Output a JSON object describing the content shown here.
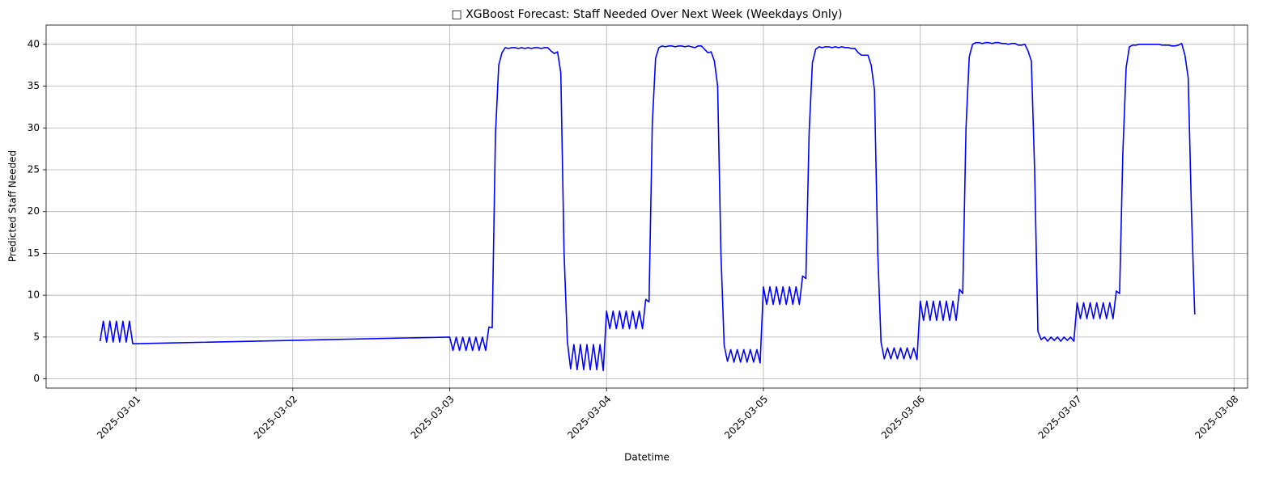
{
  "chart_data": {
    "type": "line",
    "title": "□ XGBoost Forecast: Staff Needed Over Next Week (Weekdays Only)",
    "x_label": "Datetime",
    "y_label": "Predicted Staff Needed",
    "color": "#0000ff",
    "grid": true,
    "xlim": [
      "2025-02-28 10:15",
      "2025-03-08 02:05"
    ],
    "xticks": [
      "2025-03-01",
      "2025-03-02",
      "2025-03-03",
      "2025-03-04",
      "2025-03-05",
      "2025-03-06",
      "2025-03-07",
      "2025-03-08"
    ],
    "ylim": [
      -1.1,
      42.3
    ],
    "yticks": [
      0,
      5,
      10,
      15,
      20,
      25,
      30,
      35,
      40
    ],
    "x": [
      "2025-02-28 18:30",
      "2025-02-28 19:00",
      "2025-02-28 19:30",
      "2025-02-28 20:00",
      "2025-02-28 20:30",
      "2025-02-28 21:00",
      "2025-02-28 21:30",
      "2025-02-28 22:00",
      "2025-02-28 22:30",
      "2025-02-28 23:00",
      "2025-02-28 23:30",
      "2025-03-03 00:00",
      "2025-03-03 00:30",
      "2025-03-03 01:00",
      "2025-03-03 01:30",
      "2025-03-03 02:00",
      "2025-03-03 02:30",
      "2025-03-03 03:00",
      "2025-03-03 03:30",
      "2025-03-03 04:00",
      "2025-03-03 04:30",
      "2025-03-03 05:00",
      "2025-03-03 05:30",
      "2025-03-03 06:00",
      "2025-03-03 06:30",
      "2025-03-03 07:00",
      "2025-03-03 07:30",
      "2025-03-03 08:00",
      "2025-03-03 08:30",
      "2025-03-03 09:00",
      "2025-03-03 09:30",
      "2025-03-03 10:00",
      "2025-03-03 10:30",
      "2025-03-03 11:00",
      "2025-03-03 11:30",
      "2025-03-03 12:00",
      "2025-03-03 12:30",
      "2025-03-03 13:00",
      "2025-03-03 13:30",
      "2025-03-03 14:00",
      "2025-03-03 14:30",
      "2025-03-03 15:00",
      "2025-03-03 15:30",
      "2025-03-03 16:00",
      "2025-03-03 16:30",
      "2025-03-03 17:00",
      "2025-03-03 17:30",
      "2025-03-03 18:00",
      "2025-03-03 18:30",
      "2025-03-03 19:00",
      "2025-03-03 19:30",
      "2025-03-03 20:00",
      "2025-03-03 20:30",
      "2025-03-03 21:00",
      "2025-03-03 21:30",
      "2025-03-03 22:00",
      "2025-03-03 22:30",
      "2025-03-03 23:00",
      "2025-03-03 23:30",
      "2025-03-04 00:00",
      "2025-03-04 00:30",
      "2025-03-04 01:00",
      "2025-03-04 01:30",
      "2025-03-04 02:00",
      "2025-03-04 02:30",
      "2025-03-04 03:00",
      "2025-03-04 03:30",
      "2025-03-04 04:00",
      "2025-03-04 04:30",
      "2025-03-04 05:00",
      "2025-03-04 05:30",
      "2025-03-04 06:00",
      "2025-03-04 06:30",
      "2025-03-04 07:00",
      "2025-03-04 07:30",
      "2025-03-04 08:00",
      "2025-03-04 08:30",
      "2025-03-04 09:00",
      "2025-03-04 09:30",
      "2025-03-04 10:00",
      "2025-03-04 10:30",
      "2025-03-04 11:00",
      "2025-03-04 11:30",
      "2025-03-04 12:00",
      "2025-03-04 12:30",
      "2025-03-04 13:00",
      "2025-03-04 13:30",
      "2025-03-04 14:00",
      "2025-03-04 14:30",
      "2025-03-04 15:00",
      "2025-03-04 15:30",
      "2025-03-04 16:00",
      "2025-03-04 16:30",
      "2025-03-04 17:00",
      "2025-03-04 17:30",
      "2025-03-04 18:00",
      "2025-03-04 18:30",
      "2025-03-04 19:00",
      "2025-03-04 19:30",
      "2025-03-04 20:00",
      "2025-03-04 20:30",
      "2025-03-04 21:00",
      "2025-03-04 21:30",
      "2025-03-04 22:00",
      "2025-03-04 22:30",
      "2025-03-04 23:00",
      "2025-03-04 23:30",
      "2025-03-05 00:00",
      "2025-03-05 00:30",
      "2025-03-05 01:00",
      "2025-03-05 01:30",
      "2025-03-05 02:00",
      "2025-03-05 02:30",
      "2025-03-05 03:00",
      "2025-03-05 03:30",
      "2025-03-05 04:00",
      "2025-03-05 04:30",
      "2025-03-05 05:00",
      "2025-03-05 05:30",
      "2025-03-05 06:00",
      "2025-03-05 06:30",
      "2025-03-05 07:00",
      "2025-03-05 07:30",
      "2025-03-05 08:00",
      "2025-03-05 08:30",
      "2025-03-05 09:00",
      "2025-03-05 09:30",
      "2025-03-05 10:00",
      "2025-03-05 10:30",
      "2025-03-05 11:00",
      "2025-03-05 11:30",
      "2025-03-05 12:00",
      "2025-03-05 12:30",
      "2025-03-05 13:00",
      "2025-03-05 13:30",
      "2025-03-05 14:00",
      "2025-03-05 14:30",
      "2025-03-05 15:00",
      "2025-03-05 15:30",
      "2025-03-05 16:00",
      "2025-03-05 16:30",
      "2025-03-05 17:00",
      "2025-03-05 17:30",
      "2025-03-05 18:00",
      "2025-03-05 18:30",
      "2025-03-05 19:00",
      "2025-03-05 19:30",
      "2025-03-05 20:00",
      "2025-03-05 20:30",
      "2025-03-05 21:00",
      "2025-03-05 21:30",
      "2025-03-05 22:00",
      "2025-03-05 22:30",
      "2025-03-05 23:00",
      "2025-03-05 23:30",
      "2025-03-06 00:00",
      "2025-03-06 00:30",
      "2025-03-06 01:00",
      "2025-03-06 01:30",
      "2025-03-06 02:00",
      "2025-03-06 02:30",
      "2025-03-06 03:00",
      "2025-03-06 03:30",
      "2025-03-06 04:00",
      "2025-03-06 04:30",
      "2025-03-06 05:00",
      "2025-03-06 05:30",
      "2025-03-06 06:00",
      "2025-03-06 06:30",
      "2025-03-06 07:00",
      "2025-03-06 07:30",
      "2025-03-06 08:00",
      "2025-03-06 08:30",
      "2025-03-06 09:00",
      "2025-03-06 09:30",
      "2025-03-06 10:00",
      "2025-03-06 10:30",
      "2025-03-06 11:00",
      "2025-03-06 11:30",
      "2025-03-06 12:00",
      "2025-03-06 12:30",
      "2025-03-06 13:00",
      "2025-03-06 13:30",
      "2025-03-06 14:00",
      "2025-03-06 14:30",
      "2025-03-06 15:00",
      "2025-03-06 15:30",
      "2025-03-06 16:00",
      "2025-03-06 16:30",
      "2025-03-06 17:00",
      "2025-03-06 17:30",
      "2025-03-06 18:00",
      "2025-03-06 18:30",
      "2025-03-06 19:00",
      "2025-03-06 19:30",
      "2025-03-06 20:00",
      "2025-03-06 20:30",
      "2025-03-06 21:00",
      "2025-03-06 21:30",
      "2025-03-06 22:00",
      "2025-03-06 22:30",
      "2025-03-06 23:00",
      "2025-03-06 23:30",
      "2025-03-07 00:00",
      "2025-03-07 00:30",
      "2025-03-07 01:00",
      "2025-03-07 01:30",
      "2025-03-07 02:00",
      "2025-03-07 02:30",
      "2025-03-07 03:00",
      "2025-03-07 03:30",
      "2025-03-07 04:00",
      "2025-03-07 04:30",
      "2025-03-07 05:00",
      "2025-03-07 05:30",
      "2025-03-07 06:00",
      "2025-03-07 06:30",
      "2025-03-07 07:00",
      "2025-03-07 07:30",
      "2025-03-07 08:00",
      "2025-03-07 08:30",
      "2025-03-07 09:00",
      "2025-03-07 09:30",
      "2025-03-07 10:00",
      "2025-03-07 10:30",
      "2025-03-07 11:00",
      "2025-03-07 11:30",
      "2025-03-07 12:00",
      "2025-03-07 12:30",
      "2025-03-07 13:00",
      "2025-03-07 13:30",
      "2025-03-07 14:00",
      "2025-03-07 14:30",
      "2025-03-07 15:00",
      "2025-03-07 15:30",
      "2025-03-07 16:00",
      "2025-03-07 16:30",
      "2025-03-07 17:00",
      "2025-03-07 17:30",
      "2025-03-07 18:00"
    ],
    "values": [
      4.5,
      6.9,
      4.4,
      6.9,
      4.4,
      6.9,
      4.4,
      6.9,
      4.4,
      6.9,
      4.2,
      5.0,
      3.4,
      5.0,
      3.4,
      5.0,
      3.4,
      5.0,
      3.4,
      5.0,
      3.4,
      5.0,
      3.4,
      6.2,
      6.1,
      29.2,
      37.5,
      39.0,
      39.6,
      39.5,
      39.6,
      39.6,
      39.5,
      39.6,
      39.5,
      39.6,
      39.5,
      39.6,
      39.6,
      39.5,
      39.6,
      39.6,
      39.2,
      38.9,
      39.1,
      36.6,
      15.0,
      4.5,
      1.2,
      4.1,
      1.1,
      4.1,
      1.1,
      4.1,
      1.1,
      4.1,
      1.1,
      4.1,
      1.0,
      8.1,
      6.0,
      8.1,
      6.0,
      8.1,
      6.0,
      8.1,
      6.0,
      8.1,
      6.0,
      8.1,
      6.0,
      9.5,
      9.2,
      30.5,
      38.3,
      39.6,
      39.8,
      39.7,
      39.8,
      39.8,
      39.7,
      39.8,
      39.8,
      39.7,
      39.8,
      39.7,
      39.6,
      39.8,
      39.8,
      39.4,
      39.0,
      39.1,
      38.0,
      35.0,
      15.0,
      4.0,
      2.1,
      3.5,
      2.0,
      3.5,
      2.0,
      3.5,
      2.0,
      3.5,
      2.0,
      3.5,
      1.9,
      11.0,
      8.9,
      11.0,
      8.9,
      11.0,
      8.9,
      11.0,
      8.9,
      11.0,
      8.9,
      11.0,
      8.9,
      12.3,
      12.0,
      29.5,
      37.8,
      39.4,
      39.7,
      39.6,
      39.7,
      39.7,
      39.6,
      39.7,
      39.6,
      39.7,
      39.6,
      39.6,
      39.5,
      39.5,
      39.0,
      38.7,
      38.7,
      38.7,
      37.5,
      34.5,
      15.0,
      4.4,
      2.4,
      3.7,
      2.4,
      3.7,
      2.4,
      3.7,
      2.4,
      3.7,
      2.4,
      3.7,
      2.3,
      9.3,
      7.0,
      9.3,
      7.0,
      9.3,
      7.0,
      9.3,
      7.0,
      9.3,
      7.0,
      9.3,
      7.0,
      10.7,
      10.2,
      30.0,
      38.5,
      40.0,
      40.2,
      40.2,
      40.1,
      40.2,
      40.2,
      40.1,
      40.2,
      40.2,
      40.1,
      40.1,
      40.0,
      40.1,
      40.1,
      39.9,
      39.9,
      40.0,
      39.2,
      38.0,
      25.0,
      5.7,
      4.7,
      5.0,
      4.5,
      5.0,
      4.6,
      5.0,
      4.5,
      5.0,
      4.6,
      5.0,
      4.5,
      9.1,
      7.2,
      9.1,
      7.2,
      9.1,
      7.2,
      9.1,
      7.2,
      9.1,
      7.2,
      9.1,
      7.2,
      10.5,
      10.2,
      27.0,
      37.2,
      39.7,
      39.9,
      39.9,
      40.0,
      40.0,
      40.0,
      40.0,
      40.0,
      40.0,
      40.0,
      39.9,
      39.9,
      39.9,
      39.8,
      39.8,
      39.9,
      40.1,
      38.7,
      36.0,
      20.0,
      7.7
    ]
  }
}
